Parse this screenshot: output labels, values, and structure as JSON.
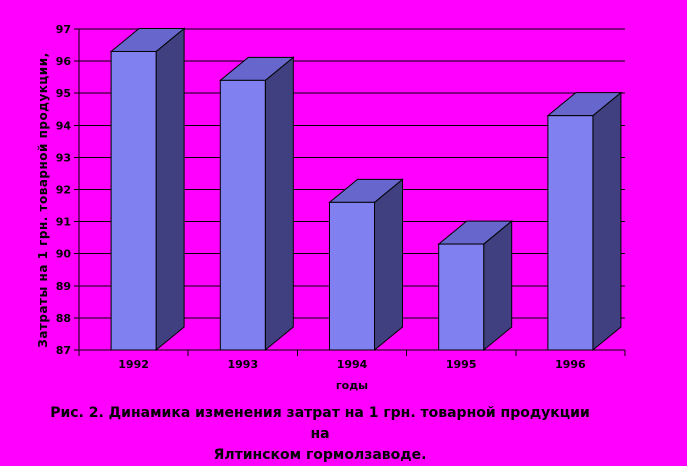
{
  "chart_data": {
    "type": "bar",
    "style": "3d-column",
    "title": "",
    "categories": [
      "1992",
      "1993",
      "1994",
      "1995",
      "1996"
    ],
    "values": [
      96.3,
      95.4,
      91.6,
      90.3,
      94.3
    ],
    "xlabel": "годы",
    "ylabel": "Затраты на 1 грн. товарной продукции,",
    "ylim": [
      87,
      97
    ],
    "yticks": [
      87,
      88,
      89,
      90,
      91,
      92,
      93,
      94,
      95,
      96,
      97
    ],
    "grid": true,
    "legend": false,
    "colors": {
      "background": "#FF00FF",
      "bar_front": "#8080F0",
      "bar_top": "#6666CC",
      "bar_side": "#404080",
      "axis": "#000000",
      "text": "#000000"
    }
  },
  "caption": {
    "line1": "Рис. 2. Динамика изменения затрат на 1 грн. товарной продукции на",
    "line2": "Ялтинском гормолзаводе."
  }
}
